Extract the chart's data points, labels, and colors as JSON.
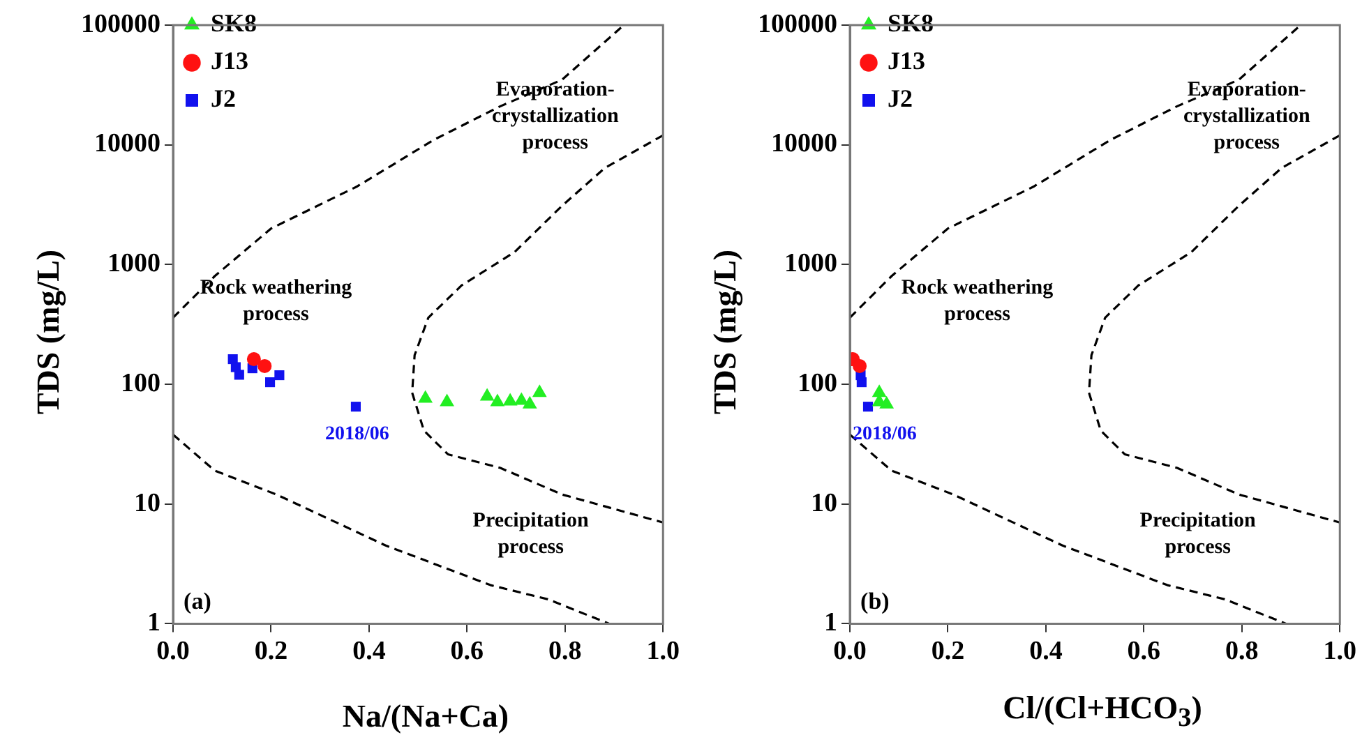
{
  "chart_data": [
    {
      "type": "scatter",
      "xlabel": "Na/(Na+Ca)",
      "ylabel": "TDS (mg/L)",
      "log": "y",
      "grid": false,
      "legend": "top left",
      "xlim": [
        0,
        1
      ],
      "xticks": [
        {
          "value": 0,
          "label": "0.0"
        },
        {
          "value": 0.2,
          "label": "0.2"
        },
        {
          "value": 0.4,
          "label": "0.4"
        },
        {
          "value": 0.6,
          "label": "0.6"
        },
        {
          "value": 0.8,
          "label": "0.8"
        },
        {
          "value": 1,
          "label": "1.0"
        }
      ],
      "ylim": [
        1,
        100000
      ],
      "yticks": [
        1,
        10,
        100,
        1000,
        10000,
        100000
      ],
      "series": [
        {
          "name": "SK8",
          "color": "#22ee22",
          "marker": "triangle",
          "x": [
            0.515,
            0.559,
            0.641,
            0.662,
            0.688,
            0.711,
            0.728,
            0.748
          ],
          "values": [
            76,
            71,
            79,
            71,
            72,
            73,
            68,
            85
          ]
        },
        {
          "name": "J13",
          "color": "#ff1111",
          "marker": "circle",
          "x": [
            0.165,
            0.187
          ],
          "values": [
            162,
            142
          ]
        },
        {
          "name": "J2",
          "color": "#1111ee",
          "marker": "square",
          "x": [
            0.122,
            0.128,
            0.135,
            0.162,
            0.198,
            0.217,
            0.373
          ],
          "values": [
            162,
            139,
            120,
            136,
            104,
            119,
            65
          ]
        },
        {
          "type": "line",
          "color": "#000000",
          "line_style": "dashed",
          "marker": "none",
          "x": [
            0,
            0.085,
            0.2,
            0.376,
            0.532,
            0.668,
            0.794,
            0.92
          ],
          "values": [
            360,
            800,
            2000,
            4500,
            11000,
            21000,
            35000,
            100000
          ]
        },
        {
          "type": "line",
          "color": "#000000",
          "line_style": "dashed",
          "marker": "none",
          "x": [
            0,
            0.085,
            0.211,
            0.434,
            0.648,
            0.765,
            0.89
          ],
          "values": [
            38,
            19,
            12,
            4.5,
            2.1,
            1.6,
            1
          ]
        },
        {
          "type": "line",
          "color": "#000000",
          "line_style": "dashed",
          "marker": "none",
          "x": [
            1,
            0.881,
            0.794,
            0.697,
            0.589,
            0.521,
            0.493,
            0.488,
            0.512,
            0.561,
            0.668,
            0.794,
            1
          ],
          "values": [
            12000,
            6400,
            3100,
            1270,
            670,
            360,
            175,
            85,
            41,
            26,
            20,
            12,
            7
          ]
        }
      ],
      "annotations": [
        "Rock weathering process",
        "Evaporation-crystallization process",
        "Precipitation process",
        "(a)",
        {
          "text": "2018/06",
          "x": 0.373,
          "y": 65
        }
      ]
    },
    {
      "type": "scatter",
      "xlabel": "Cl/(Cl+HCO$_{3}$)",
      "ylabel": "TDS (mg/L)",
      "log": "y",
      "grid": false,
      "legend": "top left",
      "xlim": [
        0,
        1
      ],
      "xticks": [
        {
          "value": 0,
          "label": "0.0"
        },
        {
          "value": 0.2,
          "label": "0.2"
        },
        {
          "value": 0.4,
          "label": "0.4"
        },
        {
          "value": 0.6,
          "label": "0.6"
        },
        {
          "value": 0.8,
          "label": "0.8"
        },
        {
          "value": 1,
          "label": "1.0"
        }
      ],
      "ylim": [
        1,
        100000
      ],
      "yticks": [
        1,
        10,
        100,
        1000,
        10000,
        100000
      ],
      "series": [
        {
          "name": "SK8",
          "color": "#22ee22",
          "marker": "triangle",
          "x": [
            null,
            0.06,
            null,
            null,
            null,
            null,
            0.075,
            0.06
          ],
          "values": [
            null,
            71,
            null,
            null,
            null,
            null,
            68,
            85
          ]
        },
        {
          "name": "J13",
          "color": "#ff1111",
          "marker": "circle",
          "x": [
            0.006,
            0.02
          ],
          "values": [
            162,
            142
          ]
        },
        {
          "name": "J2",
          "color": "#1111ee",
          "marker": "square",
          "x": [
            null,
            null,
            null,
            null,
            0.024,
            0.022,
            0.037
          ],
          "values": [
            null,
            null,
            null,
            null,
            104,
            119,
            65
          ]
        },
        {
          "type": "line",
          "color": "#000000",
          "line_style": "dashed",
          "marker": "none",
          "x": [
            0,
            0.085,
            0.2,
            0.376,
            0.532,
            0.668,
            0.794,
            0.92
          ],
          "values": [
            360,
            800,
            2000,
            4500,
            11000,
            21000,
            35000,
            100000
          ]
        },
        {
          "type": "line",
          "color": "#000000",
          "line_style": "dashed",
          "marker": "none",
          "x": [
            0,
            0.085,
            0.211,
            0.434,
            0.648,
            0.765,
            0.89
          ],
          "values": [
            38,
            19,
            12,
            4.5,
            2.1,
            1.6,
            1
          ]
        },
        {
          "type": "line",
          "color": "#000000",
          "line_style": "dashed",
          "marker": "none",
          "x": [
            1,
            0.881,
            0.794,
            0.697,
            0.589,
            0.521,
            0.493,
            0.488,
            0.512,
            0.561,
            0.668,
            0.794,
            1
          ],
          "values": [
            12000,
            6400,
            3100,
            1270,
            670,
            360,
            175,
            85,
            41,
            26,
            20,
            12,
            7
          ]
        }
      ],
      "annotations": [
        "Rock weathering process",
        "Evaporation-crystallization process",
        "Precipitation process",
        "(b)",
        {
          "text": "2018/06",
          "x": 0.037,
          "y": 65
        }
      ]
    }
  ]
}
